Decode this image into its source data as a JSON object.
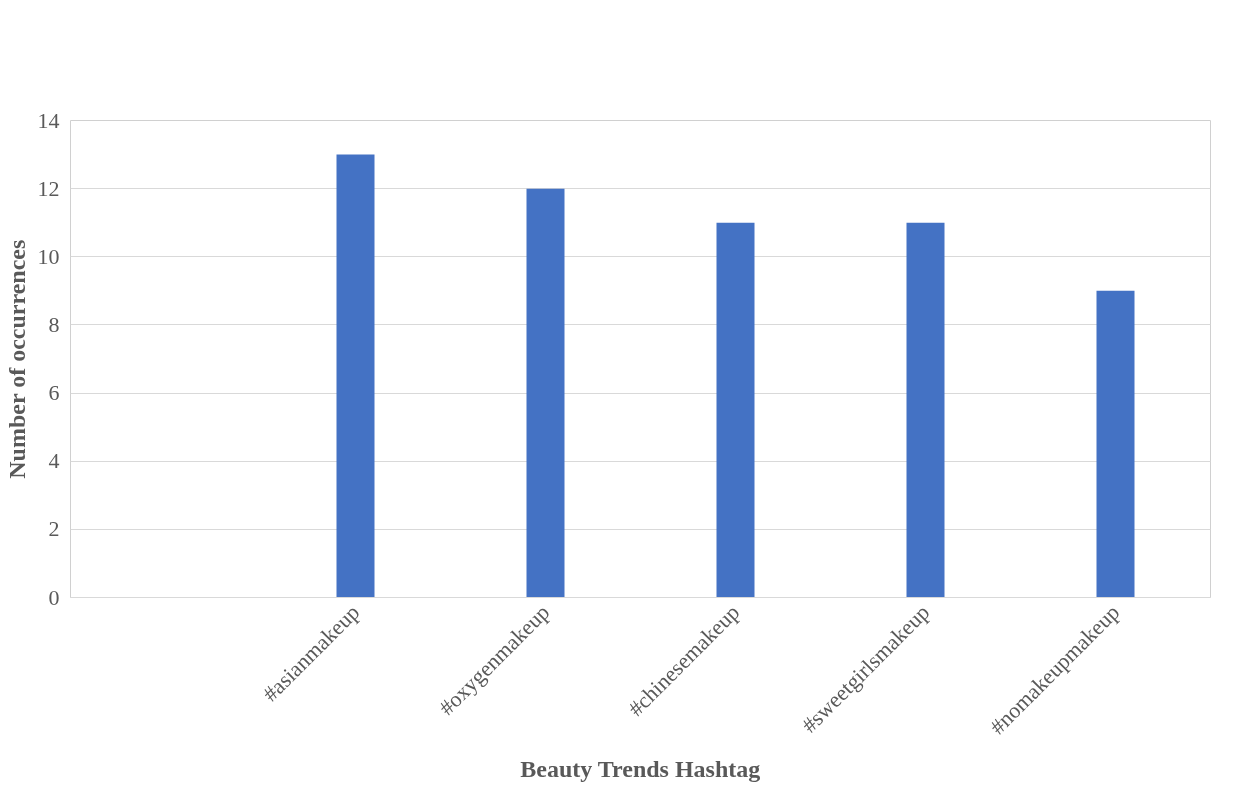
{
  "chart_data": {
    "type": "bar",
    "xlabel": "Beauty Trends Hashtag",
    "ylabel": "Number of occurrences",
    "categories": [
      null,
      "#asianmakeup",
      "#oxygenmakeup",
      "#chinesemakeup",
      "#sweetgirlsmakeup",
      "#nomakeupmakeup"
    ],
    "values": [
      null,
      13,
      12,
      11,
      11,
      9
    ],
    "color": "#4472c4",
    "ylim": [
      0,
      14
    ],
    "yticks": [
      0,
      2,
      4,
      6,
      8,
      10,
      12,
      14
    ],
    "grid": "y"
  }
}
